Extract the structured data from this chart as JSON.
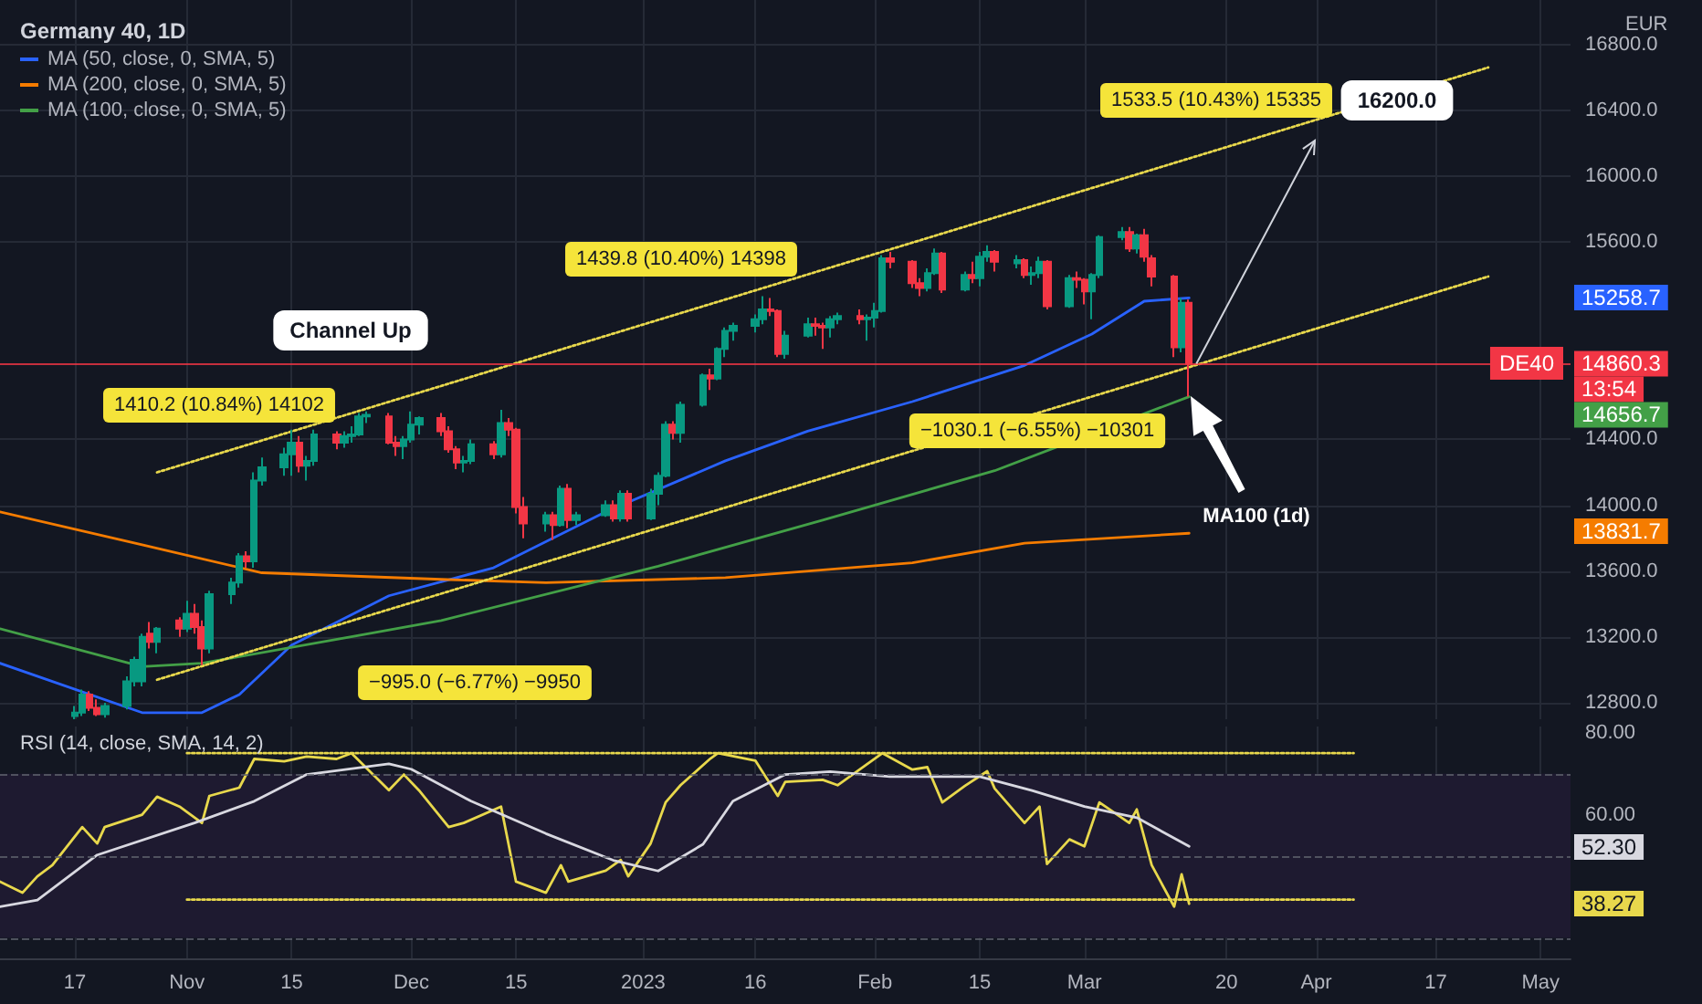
{
  "chart_data": [
    {
      "type": "candlestick",
      "title": "Germany 40, 1D",
      "ylabel": "EUR",
      "x": [
        "2022-10-17",
        "2022-10-18",
        "2022-10-19",
        "2022-10-20",
        "2022-10-21",
        "2022-10-24",
        "2022-10-25",
        "2022-10-26",
        "2022-10-27",
        "2022-10-28",
        "2022-10-31",
        "2022-11-01",
        "2022-11-02",
        "2022-11-03",
        "2022-11-04",
        "2022-11-07",
        "2022-11-08",
        "2022-11-09",
        "2022-11-10",
        "2022-11-11",
        "2022-11-14",
        "2022-11-15",
        "2022-11-16",
        "2022-11-17",
        "2022-11-18",
        "2022-11-21",
        "2022-11-22",
        "2022-11-23",
        "2022-11-24",
        "2022-11-25",
        "2022-11-28",
        "2022-11-29",
        "2022-11-30",
        "2022-12-01",
        "2022-12-02",
        "2022-12-05",
        "2022-12-06",
        "2022-12-07",
        "2022-12-08",
        "2022-12-09",
        "2022-12-12",
        "2022-12-13",
        "2022-12-14",
        "2022-12-15",
        "2022-12-16",
        "2022-12-19",
        "2022-12-20",
        "2022-12-21",
        "2022-12-22",
        "2022-12-23",
        "2022-12-27",
        "2022-12-28",
        "2022-12-29",
        "2022-12-30",
        "2023-01-02",
        "2023-01-03",
        "2023-01-04",
        "2023-01-05",
        "2023-01-06",
        "2023-01-09",
        "2023-01-10",
        "2023-01-11",
        "2023-01-12",
        "2023-01-13",
        "2023-01-16",
        "2023-01-17",
        "2023-01-18",
        "2023-01-19",
        "2023-01-20",
        "2023-01-23",
        "2023-01-24",
        "2023-01-25",
        "2023-01-26",
        "2023-01-27",
        "2023-01-30",
        "2023-01-31",
        "2023-02-01",
        "2023-02-02",
        "2023-02-03",
        "2023-02-06",
        "2023-02-07",
        "2023-02-08",
        "2023-02-09",
        "2023-02-10",
        "2023-02-13",
        "2023-02-14",
        "2023-02-15",
        "2023-02-16",
        "2023-02-17",
        "2023-02-20",
        "2023-02-21",
        "2023-02-22",
        "2023-02-23",
        "2023-02-24",
        "2023-02-27",
        "2023-02-28",
        "2023-03-01",
        "2023-03-02",
        "2023-03-03",
        "2023-03-06",
        "2023-03-07",
        "2023-03-08",
        "2023-03-09",
        "2023-03-10",
        "2023-03-13",
        "2023-03-14",
        "2023-03-15"
      ],
      "ohlc": [
        [
          12720,
          12780,
          12700,
          12740
        ],
        [
          12740,
          12880,
          12720,
          12850
        ],
        [
          12850,
          12870,
          12750,
          12770
        ],
        [
          12770,
          12820,
          12720,
          12730
        ],
        [
          12730,
          12800,
          12710,
          12780
        ],
        [
          12780,
          12960,
          12760,
          12930
        ],
        [
          12930,
          13080,
          12900,
          13060
        ],
        [
          12930,
          13220,
          12900,
          13200
        ],
        [
          13220,
          13290,
          13130,
          13170
        ],
        [
          13170,
          13260,
          13100,
          13250
        ],
        [
          13300,
          13320,
          13200,
          13250
        ],
        [
          13250,
          13420,
          13230,
          13340
        ],
        [
          13340,
          13400,
          13220,
          13260
        ],
        [
          13260,
          13300,
          13030,
          13130
        ],
        [
          13130,
          13480,
          13100,
          13460
        ],
        [
          13460,
          13560,
          13400,
          13530
        ],
        [
          13530,
          13710,
          13500,
          13690
        ],
        [
          13690,
          13720,
          13620,
          13660
        ],
        [
          13660,
          14200,
          13620,
          14150
        ],
        [
          14150,
          14290,
          14120,
          14230
        ],
        [
          14230,
          14350,
          14180,
          14310
        ],
        [
          14310,
          14460,
          14180,
          14380
        ],
        [
          14380,
          14420,
          14200,
          14240
        ],
        [
          14240,
          14300,
          14150,
          14270
        ],
        [
          14270,
          14460,
          14240,
          14430
        ],
        [
          14430,
          14450,
          14340,
          14380
        ],
        [
          14380,
          14450,
          14350,
          14420
        ],
        [
          14420,
          14480,
          14380,
          14430
        ],
        [
          14430,
          14560,
          14420,
          14540
        ],
        [
          14540,
          14570,
          14500,
          14550
        ],
        [
          14540,
          14560,
          14370,
          14380
        ],
        [
          14380,
          14420,
          14300,
          14360
        ],
        [
          14360,
          14420,
          14280,
          14400
        ],
        [
          14400,
          14570,
          14380,
          14490
        ],
        [
          14490,
          14540,
          14430,
          14530
        ],
        [
          14530,
          14560,
          14420,
          14450
        ],
        [
          14450,
          14480,
          14320,
          14340
        ],
        [
          14340,
          14360,
          14220,
          14260
        ],
        [
          14260,
          14300,
          14200,
          14270
        ],
        [
          14270,
          14400,
          14250,
          14370
        ],
        [
          14370,
          14390,
          14280,
          14310
        ],
        [
          14310,
          14580,
          14290,
          14500
        ],
        [
          14500,
          14530,
          14420,
          14460
        ],
        [
          14460,
          14470,
          13950,
          13990
        ],
        [
          13990,
          14050,
          13800,
          13890
        ],
        [
          13890,
          13960,
          13840,
          13940
        ],
        [
          13940,
          13960,
          13790,
          13880
        ],
        [
          13880,
          14120,
          13870,
          14100
        ],
        [
          14100,
          14130,
          13860,
          13910
        ],
        [
          13910,
          13960,
          13880,
          13940
        ],
        [
          13940,
          14030,
          13930,
          14000
        ],
        [
          14000,
          14030,
          13900,
          13920
        ],
        [
          13920,
          14090,
          13900,
          14070
        ],
        [
          14070,
          14090,
          13900,
          13920
        ],
        [
          13920,
          14100,
          13910,
          14070
        ],
        [
          14070,
          14200,
          14000,
          14180
        ],
        [
          14180,
          14510,
          14170,
          14490
        ],
        [
          14490,
          14510,
          14400,
          14440
        ],
        [
          14440,
          14630,
          14380,
          14610
        ],
        [
          14610,
          14800,
          14600,
          14790
        ],
        [
          14790,
          14830,
          14700,
          14770
        ],
        [
          14770,
          14960,
          14760,
          14950
        ],
        [
          14950,
          15080,
          14900,
          15060
        ],
        [
          15060,
          15110,
          15000,
          15090
        ],
        [
          15090,
          15160,
          15050,
          15130
        ],
        [
          15130,
          15270,
          15100,
          15190
        ],
        [
          15190,
          15260,
          15150,
          15180
        ],
        [
          15180,
          15190,
          14900,
          14920
        ],
        [
          14920,
          15060,
          14890,
          15030
        ],
        [
          15030,
          15140,
          15020,
          15100
        ],
        [
          15100,
          15140,
          15030,
          15090
        ],
        [
          15090,
          15110,
          14950,
          15080
        ],
        [
          15080,
          15150,
          15020,
          15130
        ],
        [
          15130,
          15170,
          15100,
          15150
        ],
        [
          15150,
          15190,
          15100,
          15130
        ],
        [
          15130,
          15160,
          15000,
          15140
        ],
        [
          15140,
          15230,
          15080,
          15180
        ],
        [
          15180,
          15520,
          15170,
          15500
        ],
        [
          15500,
          15540,
          15440,
          15480
        ],
        [
          15480,
          15490,
          15320,
          15350
        ],
        [
          15350,
          15380,
          15270,
          15320
        ],
        [
          15320,
          15440,
          15300,
          15410
        ],
        [
          15410,
          15560,
          15400,
          15530
        ],
        [
          15530,
          15540,
          15290,
          15310
        ],
        [
          15310,
          15420,
          15300,
          15400
        ],
        [
          15400,
          15480,
          15350,
          15380
        ],
        [
          15380,
          15540,
          15330,
          15510
        ],
        [
          15510,
          15580,
          15480,
          15540
        ],
        [
          15540,
          15550,
          15420,
          15480
        ],
        [
          15470,
          15520,
          15440,
          15490
        ],
        [
          15490,
          15500,
          15380,
          15400
        ],
        [
          15400,
          15450,
          15340,
          15410
        ],
        [
          15410,
          15510,
          15380,
          15480
        ],
        [
          15480,
          15490,
          15190,
          15210
        ],
        [
          15210,
          15400,
          15200,
          15380
        ],
        [
          15380,
          15420,
          15320,
          15370
        ],
        [
          15370,
          15380,
          15220,
          15300
        ],
        [
          15300,
          15410,
          15130,
          15400
        ],
        [
          15400,
          15640,
          15380,
          15630
        ],
        [
          15630,
          15690,
          15610,
          15660
        ],
        [
          15660,
          15690,
          15540,
          15560
        ],
        [
          15560,
          15650,
          15530,
          15640
        ],
        [
          15640,
          15680,
          15480,
          15510
        ],
        [
          15500,
          15520,
          15330,
          15390
        ],
        [
          15390,
          15400,
          14900,
          14960
        ],
        [
          14960,
          15260,
          14930,
          15230
        ],
        [
          15230,
          15250,
          14660,
          14860
        ]
      ],
      "series": [
        {
          "name": "MA (50, close, 0, SMA, 5)",
          "type": "line",
          "color": "#2962ff",
          "x": [
            "2022-10-07",
            "2022-10-26",
            "2022-11-03",
            "2022-11-08",
            "2022-11-15",
            "2022-11-28",
            "2022-12-12",
            "2022-12-27",
            "2023-01-12",
            "2023-01-23",
            "2023-02-06",
            "2023-02-21",
            "2023-03-02",
            "2023-03-09",
            "2023-03-15"
          ],
          "values": [
            13040,
            12740,
            12740,
            12850,
            13150,
            13450,
            13620,
            13960,
            14270,
            14450,
            14630,
            14850,
            15040,
            15240,
            15260
          ]
        },
        {
          "name": "MA (200, close, 0, SMA, 5)",
          "type": "line",
          "color": "#f57c00",
          "x": [
            "2022-10-07",
            "2022-10-26",
            "2022-11-11",
            "2022-12-05",
            "2022-12-19",
            "2023-01-12",
            "2023-02-06",
            "2023-02-21",
            "2023-03-15"
          ],
          "values": [
            13960,
            13760,
            13590,
            13550,
            13530,
            13560,
            13650,
            13770,
            13830
          ]
        },
        {
          "name": "MA (100, close, 0, SMA, 5)",
          "type": "line",
          "color": "#43a047",
          "x": [
            "2022-10-07",
            "2022-10-26",
            "2022-11-03",
            "2022-11-24",
            "2022-12-05",
            "2023-01-03",
            "2023-01-25",
            "2023-02-17",
            "2023-03-15"
          ],
          "values": [
            13250,
            13020,
            13040,
            13210,
            13300,
            13630,
            13910,
            14210,
            14660
          ]
        },
        {
          "type": "line",
          "color": "#e8d84c",
          "line_style": "dotted",
          "x": [
            "2022-10-28",
            "2023-04-24"
          ],
          "values": [
            14200,
            16660
          ]
        },
        {
          "type": "line",
          "color": "#e8d84c",
          "line_style": "dotted",
          "x": [
            "2022-10-28",
            "2023-04-24"
          ],
          "values": [
            12940,
            15390
          ]
        }
      ],
      "xlim": [
        "2022-10-07",
        "2023-05-05"
      ],
      "xticks": [
        {
          "value": "2022-10-17",
          "label": null
        },
        {
          "value": "2022-11-01",
          "label": null
        },
        {
          "value": "2022-11-15",
          "label": null
        },
        {
          "value": "2022-12-01",
          "label": null
        },
        {
          "value": "2022-12-15",
          "label": null
        },
        {
          "value": "2023-01-01",
          "label": null
        },
        {
          "value": "2023-01-16",
          "label": null
        },
        {
          "value": "2023-02-01",
          "label": null
        },
        {
          "value": "2023-02-15",
          "label": null
        },
        {
          "value": "2023-03-01",
          "label": null
        },
        {
          "value": "2023-03-20",
          "label": null
        },
        {
          "value": "2023-04-01",
          "label": null
        },
        {
          "value": "2023-04-17",
          "label": null
        },
        {
          "value": "2023-05-01",
          "label": null
        }
      ],
      "ylim": [
        12700,
        17070
      ],
      "yticks": [
        {
          "value": 12800,
          "label": "12800.0"
        },
        {
          "value": 13200,
          "label": "13200.0"
        },
        {
          "value": 13600,
          "label": "13600.0"
        },
        {
          "value": 14000,
          "label": "14000.0"
        },
        {
          "value": 14400,
          "label": "14400.0"
        },
        {
          "value": 15600,
          "label": "15600.0"
        },
        {
          "value": 16000,
          "label": "16000.0"
        },
        {
          "value": 16400,
          "label": "16400.0"
        },
        {
          "value": 16800,
          "label": "16800.0"
        }
      ],
      "tick_labels": "y",
      "grid": true,
      "legend": "top left",
      "marker": "none",
      "ref_lines": [
        {
          "axis": "y",
          "value": 14860.3,
          "label": "14860.3",
          "color": "#f23645",
          "line_style": "solid"
        }
      ],
      "annotations": [
        "1410.2 (10.84%) 14102",
        "−995.0 (−6.77%) −9950",
        "1439.8 (10.40%) 14398",
        "−1030.1 (−6.55%) −10301",
        "1533.5 (10.43%) 15335",
        "16200.0",
        "Channel Up",
        "MA100 (1d)",
        "DE40",
        "13:54",
        "15258.7",
        "14656.7",
        "13831.7"
      ]
    },
    {
      "type": "line",
      "title": "RSI (14, close, SMA, 14, 2)",
      "series": [
        {
          "color": "#e8d84c",
          "x": [
            "2022-10-07",
            "2022-10-10",
            "2022-10-12",
            "2022-10-14",
            "2022-10-18",
            "2022-10-20",
            "2022-10-21",
            "2022-10-26",
            "2022-10-28",
            "2022-10-31",
            "2022-11-03",
            "2022-11-04",
            "2022-11-08",
            "2022-11-10",
            "2022-11-14",
            "2022-11-17",
            "2022-11-21",
            "2022-11-23",
            "2022-11-28",
            "2022-11-30",
            "2022-12-02",
            "2022-12-06",
            "2022-12-08",
            "2022-12-13",
            "2022-12-15",
            "2022-12-19",
            "2022-12-21",
            "2022-12-22",
            "2022-12-27",
            "2022-12-29",
            "2022-12-30",
            "2023-01-02",
            "2023-01-04",
            "2023-01-06",
            "2023-01-10",
            "2023-01-11",
            "2023-01-16",
            "2023-01-19",
            "2023-01-20",
            "2023-01-25",
            "2023-01-27",
            "2023-02-02",
            "2023-02-06",
            "2023-02-08",
            "2023-02-10",
            "2023-02-13",
            "2023-02-16",
            "2023-02-17",
            "2023-02-21",
            "2023-02-23",
            "2023-02-24",
            "2023-02-27",
            "2023-03-01",
            "2023-03-03",
            "2023-03-07",
            "2023-03-08",
            "2023-03-10",
            "2023-03-13",
            "2023-03-14",
            "2023-03-15"
          ],
          "values": [
            43.7,
            41,
            45,
            47.7,
            57,
            53,
            57,
            60,
            64.4,
            62,
            58,
            64.6,
            66.6,
            73.6,
            73,
            74.2,
            73.6,
            75,
            66,
            69.8,
            66,
            57,
            58,
            62,
            43.7,
            41,
            47.7,
            43.7,
            46.4,
            49,
            45,
            53,
            63,
            67.2,
            73.7,
            75,
            73.2,
            64.6,
            68,
            68.5,
            67.2,
            75,
            71,
            71.6,
            63,
            67,
            70.6,
            66.4,
            58,
            62,
            48,
            54,
            52.3,
            63,
            58,
            61.3,
            47.7,
            37.6,
            45.5,
            38.3
          ]
        },
        {
          "color": "#d8d8e0",
          "x": [
            "2022-10-07",
            "2022-10-12",
            "2022-10-20",
            "2022-11-02",
            "2022-11-10",
            "2022-11-17",
            "2022-11-28",
            "2022-12-01",
            "2022-12-09",
            "2022-12-19",
            "2022-12-28",
            "2023-01-03",
            "2023-01-09",
            "2023-01-13",
            "2023-01-20",
            "2023-01-26",
            "2023-02-03",
            "2023-02-15",
            "2023-02-22",
            "2023-03-01",
            "2023-03-08",
            "2023-03-15"
          ],
          "values": [
            37.6,
            39.2,
            50.2,
            58,
            63.3,
            69.8,
            72.4,
            71.1,
            63.3,
            55.4,
            48.9,
            46.3,
            52.8,
            63.3,
            69.8,
            70.5,
            69.3,
            69.3,
            65.9,
            62,
            59.3,
            52.3
          ]
        },
        {
          "color": "#e8d84c",
          "line_style": "dotted",
          "x": [
            "2022-11-01",
            "2023-04-06"
          ],
          "values": [
            75,
            75
          ]
        },
        {
          "color": "#e8d84c",
          "line_style": "dotted",
          "x": [
            "2022-11-01",
            "2023-04-06"
          ],
          "values": [
            39.3,
            39.3
          ]
        }
      ],
      "xlim": [
        "2022-10-07",
        "2023-05-05"
      ],
      "xticks": [
        {
          "value": "2022-10-17",
          "label": "17"
        },
        {
          "value": "2022-11-01",
          "label": "Nov"
        },
        {
          "value": "2022-11-15",
          "label": "15"
        },
        {
          "value": "2022-12-01",
          "label": "Dec"
        },
        {
          "value": "2022-12-15",
          "label": "15"
        },
        {
          "value": "2023-01-01",
          "label": "2023"
        },
        {
          "value": "2023-01-16",
          "label": "16"
        },
        {
          "value": "2023-02-01",
          "label": "Feb"
        },
        {
          "value": "2023-02-15",
          "label": "15"
        },
        {
          "value": "2023-03-01",
          "label": "Mar"
        },
        {
          "value": "2023-03-20",
          "label": "20"
        },
        {
          "value": "2023-04-01",
          "label": "Apr"
        },
        {
          "value": "2023-04-17",
          "label": "17"
        },
        {
          "value": "2023-05-01",
          "label": "May"
        }
      ],
      "ylim": [
        25,
        81.5
      ],
      "yticks": [
        {
          "value": 60,
          "label": "60.00"
        },
        {
          "value": 80,
          "label": "80.00"
        }
      ],
      "grid": "x",
      "marker": "none",
      "bands": [
        {
          "axis": "y",
          "from": 30,
          "to": 70,
          "color": "#1e1a30"
        }
      ],
      "ref_lines": [
        {
          "axis": "y",
          "value": 70,
          "color": "#5d606b",
          "line_style": "dashed"
        },
        {
          "axis": "y",
          "value": 50,
          "color": "#5d606b",
          "line_style": "dashed"
        },
        {
          "axis": "y",
          "value": 30,
          "color": "#5d606b",
          "line_style": "dashed"
        }
      ],
      "annotations": [
        "52.30",
        "38.27"
      ]
    }
  ]
}
